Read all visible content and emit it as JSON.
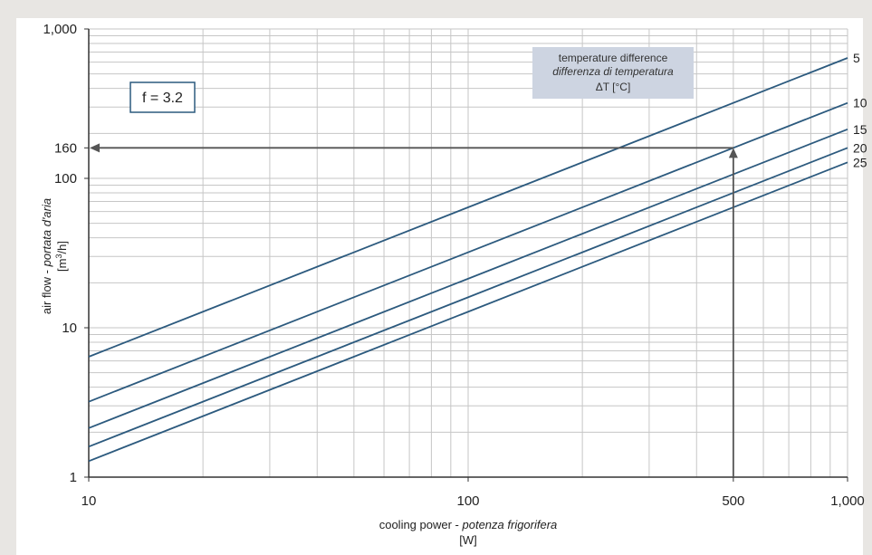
{
  "chart_data": {
    "type": "line",
    "x_scale": "log",
    "y_scale": "log",
    "xlim": [
      10,
      1000
    ],
    "ylim": [
      1,
      1000
    ],
    "xticks": [
      {
        "value": 10,
        "label": "10"
      },
      {
        "value": 100,
        "label": "100"
      },
      {
        "value": 500,
        "label": "500"
      },
      {
        "value": 1000,
        "label": "1,000"
      }
    ],
    "yticks": [
      {
        "value": 1,
        "label": "1"
      },
      {
        "value": 10,
        "label": "10"
      },
      {
        "value": 100,
        "label": "100"
      },
      {
        "value": 160,
        "label": "160"
      },
      {
        "value": 1000,
        "label": "1,000"
      }
    ],
    "xlabel": {
      "main": "cooling power - ",
      "italic": "potenza frigorifera",
      "unit": "[W]"
    },
    "ylabel": {
      "main": "air flow - ",
      "italic": "portata d'aria",
      "unit_prefix": "[m",
      "unit_sup": "3",
      "unit_suffix": "/h]"
    },
    "grid": "both (log minor)",
    "legend": {
      "line1": "temperature difference",
      "line2": "differenza di temperatura",
      "line3": "ΔT [°C]",
      "placement": "top-center-right"
    },
    "factor_label": "f = 3.2",
    "series": [
      {
        "name": "5",
        "x": [
          10,
          1000
        ],
        "y": [
          6.4,
          640
        ]
      },
      {
        "name": "10",
        "x": [
          10,
          1000
        ],
        "y": [
          3.2,
          320
        ]
      },
      {
        "name": "15",
        "x": [
          10,
          1000
        ],
        "y": [
          2.13,
          213
        ]
      },
      {
        "name": "20",
        "x": [
          10,
          1000
        ],
        "y": [
          1.6,
          160
        ]
      },
      {
        "name": "25",
        "x": [
          10,
          1000
        ],
        "y": [
          1.28,
          128
        ]
      }
    ],
    "annotation": {
      "x": 500,
      "y": 160
    },
    "colors": {
      "series": "#2c5a7e",
      "grid": "#c6c6c6",
      "arrow": "#555555",
      "legend_bg": "#cdd4e1",
      "plot_bg": "#ffffff"
    }
  }
}
